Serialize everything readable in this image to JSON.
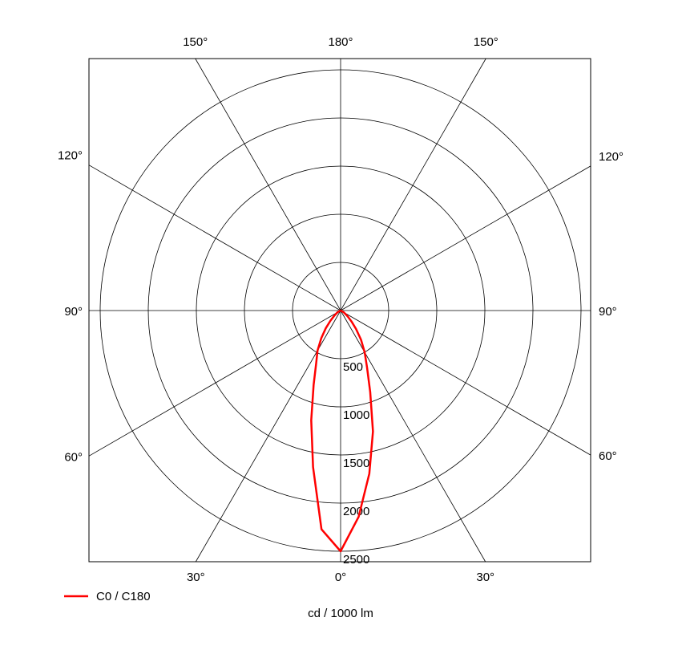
{
  "chart_data": {
    "type": "polar",
    "x": [
      -90,
      -80,
      -70,
      -60,
      -50,
      -45,
      -40,
      -35,
      -30,
      -25,
      -20,
      -15,
      -10,
      -5,
      0,
      5,
      10,
      15,
      20,
      25,
      30,
      35,
      40,
      45,
      50,
      60,
      70,
      80,
      90
    ],
    "series": [
      {
        "name": "C0 / C180",
        "color": "#ff0000",
        "values": [
          0,
          0,
          10,
          40,
          90,
          150,
          240,
          350,
          480,
          600,
          820,
          1180,
          1650,
          2280,
          2500,
          2150,
          1720,
          1300,
          900,
          650,
          500,
          370,
          250,
          160,
          100,
          40,
          10,
          0,
          0
        ]
      }
    ],
    "rlim": [
      0,
      2500
    ],
    "rticks": [
      500,
      1000,
      1500,
      2000,
      2500
    ],
    "angle_ticks": [
      {
        "value": 0,
        "label": "0°"
      },
      {
        "value": 30,
        "label": "30°"
      },
      {
        "value": 60,
        "label": "60°"
      },
      {
        "value": 90,
        "label": "90°"
      },
      {
        "value": 120,
        "label": "120°"
      },
      {
        "value": 150,
        "label": "150°"
      },
      {
        "value": 180,
        "label": "180°"
      }
    ],
    "unit_label": "cd / 1000 lm",
    "legend": "bottom-left"
  }
}
